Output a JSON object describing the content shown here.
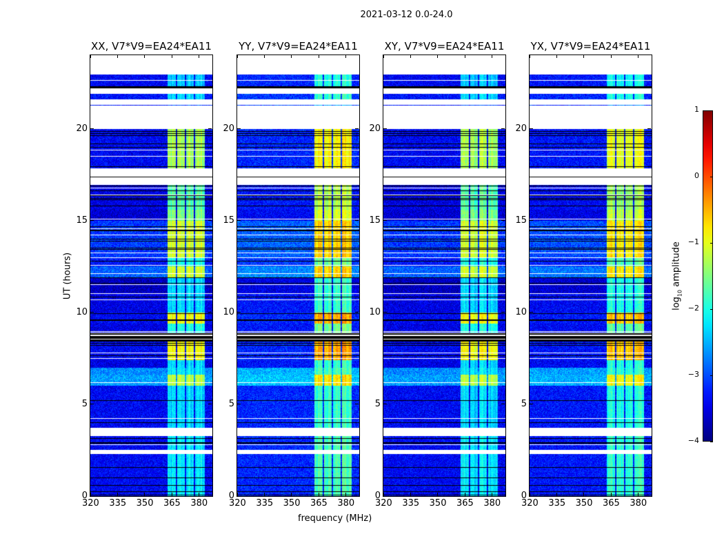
{
  "chart_data": {
    "type": "heatmap",
    "title": "2021-03-12 0.0-24.0",
    "xlabel": "frequency (MHz)",
    "ylabel": "UT (hours)",
    "xlim": [
      320,
      387.5
    ],
    "ylim": [
      0,
      24
    ],
    "xticks": [
      "320",
      "335",
      "350",
      "365",
      "380"
    ],
    "xtick_values": [
      320,
      335,
      350,
      365,
      380
    ],
    "yticks": [
      "0",
      "5",
      "10",
      "15",
      "20"
    ],
    "ytick_values": [
      0,
      5,
      10,
      15,
      20
    ],
    "colorbar": {
      "label_prefix": "log",
      "label_sub": "10",
      "label_suffix": " amplitude",
      "range": [
        -4,
        1
      ],
      "ticks": [
        "1",
        "0",
        "−1",
        "−2",
        "−3",
        "−4"
      ],
      "tick_values": [
        1,
        0,
        -1,
        -2,
        -3,
        -4
      ],
      "colormap": "jet"
    },
    "panels": [
      {
        "title": "XX, V7*V9=EA24*EA11",
        "band_boost": 0.0,
        "base_boost": 0.0
      },
      {
        "title": "YY, V7*V9=EA24*EA11",
        "band_boost": 0.45,
        "base_boost": 0.2
      },
      {
        "title": "XY, V7*V9=EA24*EA11",
        "band_boost": 0.0,
        "base_boost": 0.0
      },
      {
        "title": "YX, V7*V9=EA24*EA11",
        "band_boost": 0.3,
        "base_boost": 0.1
      }
    ],
    "rfi_band_mhz": [
      362.7,
      383.3
    ],
    "rfi_subband_gaps_mhz": [
      367.5,
      372.5,
      377.5
    ],
    "segments_columns": [
      "t_start_h",
      "t_end_h",
      "kind",
      "base_log10_amp",
      "band_log10_amp"
    ],
    "segments": [
      [
        22.94,
        24.0,
        "flag"
      ],
      [
        22.3,
        22.94,
        "data",
        -3.4,
        -2.4
      ],
      [
        22.2,
        22.3,
        "gap"
      ],
      [
        21.9,
        22.2,
        "flag"
      ],
      [
        21.6,
        21.9,
        "data",
        -3.3,
        -2.3
      ],
      [
        21.3,
        21.6,
        "flag"
      ],
      [
        21.25,
        21.3,
        "data",
        -3.3,
        -3.0
      ],
      [
        20.0,
        21.25,
        "flag"
      ],
      [
        17.85,
        20.0,
        "data",
        -3.4,
        -1.3
      ],
      [
        17.4,
        17.85,
        "flag"
      ],
      [
        17.3,
        17.4,
        "gap"
      ],
      [
        16.95,
        17.3,
        "flag"
      ],
      [
        15.6,
        16.95,
        "data",
        -3.5,
        -1.7
      ],
      [
        15.0,
        15.6,
        "data",
        -3.6,
        -1.5
      ],
      [
        13.0,
        15.0,
        "data",
        -3.1,
        -1.1
      ],
      [
        12.5,
        13.0,
        "data",
        -3.3,
        -2.0
      ],
      [
        11.9,
        12.5,
        "data",
        -2.9,
        -1.1
      ],
      [
        11.0,
        11.9,
        "data",
        -3.7,
        -2.3
      ],
      [
        10.0,
        11.0,
        "data",
        -3.5,
        -2.3
      ],
      [
        9.4,
        10.0,
        "data",
        -3.4,
        -0.9
      ],
      [
        8.9,
        9.4,
        "data",
        -3.5,
        -2.0
      ],
      [
        8.4,
        8.9,
        "gap"
      ],
      [
        7.4,
        8.4,
        "data",
        -3.4,
        -0.9
      ],
      [
        7.0,
        7.4,
        "data",
        -3.5,
        -2.3
      ],
      [
        6.6,
        7.0,
        "data",
        -2.7,
        -2.2
      ],
      [
        6.0,
        6.6,
        "data",
        -2.6,
        -1.2
      ],
      [
        5.2,
        6.0,
        "data",
        -3.4,
        -2.3
      ],
      [
        3.72,
        5.2,
        "data",
        -3.4,
        -2.3
      ],
      [
        3.27,
        3.72,
        "flag"
      ],
      [
        2.52,
        3.27,
        "data",
        -3.4,
        -2.2
      ],
      [
        2.29,
        2.52,
        "flag"
      ],
      [
        0.0,
        2.29,
        "data",
        -3.4,
        -2.2
      ]
    ]
  }
}
